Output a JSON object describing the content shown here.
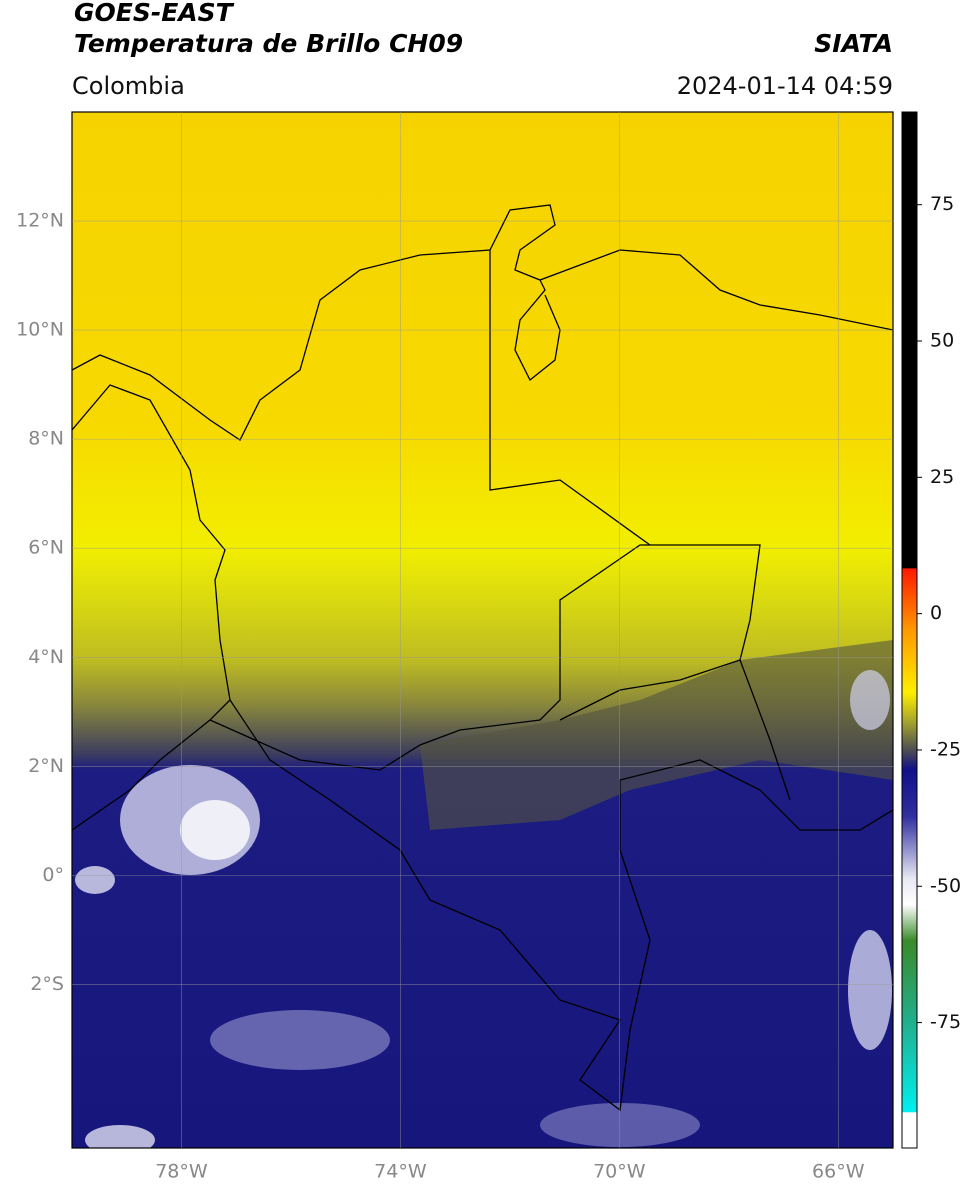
{
  "header": {
    "satellite": "GOES-EAST",
    "product": "Temperatura de Brillo CH09",
    "region": "Colombia",
    "source": "SIATA",
    "datetime": "2024-01-14 04:59"
  },
  "map": {
    "lonlim": [
      -80,
      -65
    ],
    "latlim": [
      -5,
      14
    ],
    "lat_ticks": [
      {
        "value": 12,
        "label": "12°N"
      },
      {
        "value": 10,
        "label": "10°N"
      },
      {
        "value": 8,
        "label": "8°N"
      },
      {
        "value": 6,
        "label": "6°N"
      },
      {
        "value": 4,
        "label": "4°N"
      },
      {
        "value": 2,
        "label": "2°N"
      },
      {
        "value": 0,
        "label": "0°"
      },
      {
        "value": -2,
        "label": "2°S"
      }
    ],
    "lon_ticks": [
      {
        "value": -78,
        "label": "78°W"
      },
      {
        "value": -74,
        "label": "74°W"
      },
      {
        "value": -70,
        "label": "70°W"
      },
      {
        "value": -66,
        "label": "66°W"
      }
    ]
  },
  "colorbar": {
    "lim": [
      -98,
      92
    ],
    "ticks": [
      75,
      50,
      25,
      0,
      -25,
      -50,
      -75
    ]
  }
}
